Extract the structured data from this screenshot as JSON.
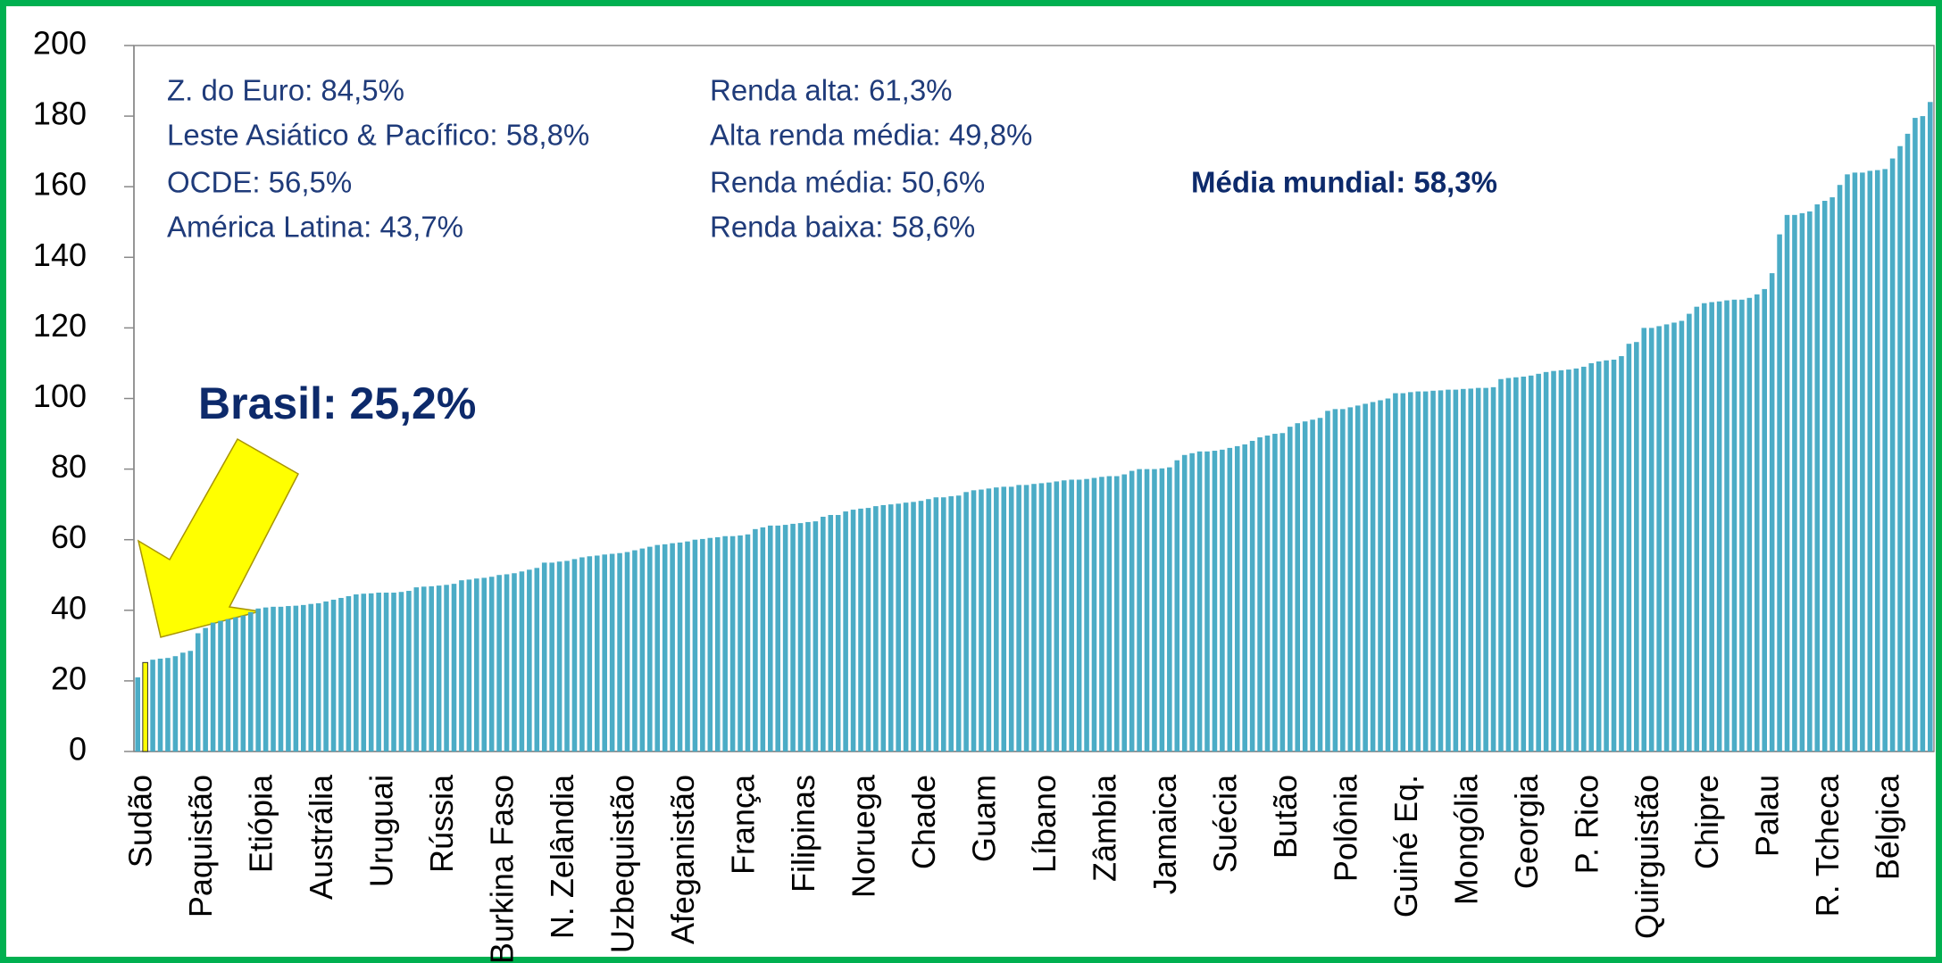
{
  "chart_data": {
    "type": "bar",
    "categories": [
      "Sudão",
      null,
      null,
      null,
      null,
      null,
      null,
      null,
      "Paquistão",
      null,
      null,
      null,
      null,
      null,
      null,
      null,
      "Etiópia",
      null,
      null,
      null,
      null,
      null,
      null,
      null,
      "Austrália",
      null,
      null,
      null,
      null,
      null,
      null,
      null,
      "Uruguai",
      null,
      null,
      null,
      null,
      null,
      null,
      null,
      "Rússia",
      null,
      null,
      null,
      null,
      null,
      null,
      null,
      "Burkina Faso",
      null,
      null,
      null,
      null,
      null,
      null,
      null,
      "N. Zelândia",
      null,
      null,
      null,
      null,
      null,
      null,
      null,
      "Uzbequistão",
      null,
      null,
      null,
      null,
      null,
      null,
      null,
      "Afeganistão",
      null,
      null,
      null,
      null,
      null,
      null,
      null,
      "França",
      null,
      null,
      null,
      null,
      null,
      null,
      null,
      "Filipinas",
      null,
      null,
      null,
      null,
      null,
      null,
      null,
      "Noruega",
      null,
      null,
      null,
      null,
      null,
      null,
      null,
      "Chade",
      null,
      null,
      null,
      null,
      null,
      null,
      null,
      "Guam",
      null,
      null,
      null,
      null,
      null,
      null,
      null,
      "Líbano",
      null,
      null,
      null,
      null,
      null,
      null,
      null,
      "Zâmbia",
      null,
      null,
      null,
      null,
      null,
      null,
      null,
      "Jamaica",
      null,
      null,
      null,
      null,
      null,
      null,
      null,
      "Suécia",
      null,
      null,
      null,
      null,
      null,
      null,
      null,
      "Butão",
      null,
      null,
      null,
      null,
      null,
      null,
      null,
      "Polônia",
      null,
      null,
      null,
      null,
      null,
      null,
      null,
      "Guiné Eq.",
      null,
      null,
      null,
      null,
      null,
      null,
      null,
      "Mongólia",
      null,
      null,
      null,
      null,
      null,
      null,
      null,
      "Georgia",
      null,
      null,
      null,
      null,
      null,
      null,
      null,
      "P. Rico",
      null,
      null,
      null,
      null,
      null,
      null,
      null,
      "Quirguistão",
      null,
      null,
      null,
      null,
      null,
      null,
      null,
      "Chipre",
      null,
      null,
      null,
      null,
      null,
      null,
      null,
      "Palau",
      null,
      null,
      null,
      null,
      null,
      null,
      null,
      "R. Tcheca",
      null,
      null,
      null,
      null,
      null,
      null,
      null,
      "Bélgica",
      null,
      null,
      null,
      null,
      null,
      null
    ],
    "values": [
      21,
      25.2,
      26,
      26.3,
      26.5,
      27,
      28,
      28.5,
      33.5,
      35,
      36.5,
      37,
      37.5,
      38,
      38.5,
      39.5,
      40.5,
      40.8,
      41,
      41,
      41.2,
      41.3,
      41.5,
      41.8,
      42,
      42.5,
      43,
      43.5,
      44,
      44.5,
      44.7,
      44.8,
      45,
      45,
      45,
      45.2,
      45.5,
      46.5,
      46.7,
      46.8,
      47,
      47.2,
      47.5,
      48.5,
      48.7,
      49,
      49.2,
      49.5,
      50,
      50.2,
      50.5,
      51,
      51.5,
      52,
      53.5,
      53.5,
      53.8,
      54,
      54.5,
      55,
      55.3,
      55.5,
      55.8,
      56,
      56.2,
      56.5,
      57,
      57.5,
      58,
      58.5,
      58.7,
      59,
      59.2,
      59.5,
      60,
      60.2,
      60.5,
      60.7,
      61,
      61,
      61.2,
      61.5,
      63,
      63.5,
      64,
      64,
      64.2,
      64.5,
      64.7,
      65,
      65.2,
      66.5,
      67,
      67,
      68,
      68.5,
      68.8,
      69,
      69.5,
      69.8,
      70,
      70.2,
      70.5,
      70.7,
      71,
      71.5,
      72,
      72,
      72.3,
      72.5,
      73.5,
      74,
      74.2,
      74.5,
      74.8,
      75,
      75,
      75.5,
      75.5,
      75.8,
      76,
      76.2,
      76.5,
      76.8,
      77,
      77,
      77.2,
      77.5,
      77.8,
      78,
      78,
      78.5,
      79.5,
      80,
      80,
      80,
      80.2,
      80.5,
      82.5,
      84,
      84.5,
      85,
      85,
      85.2,
      85.5,
      86,
      86.5,
      87,
      88,
      89,
      89.5,
      90,
      90.2,
      92,
      93,
      93.5,
      94,
      94.5,
      96.5,
      97,
      97,
      97.5,
      98,
      98.5,
      99,
      99.5,
      100,
      101.5,
      101.5,
      101.8,
      102,
      102,
      102.2,
      102.3,
      102.5,
      102.5,
      102.7,
      102.8,
      103,
      103,
      103.2,
      105.5,
      105.8,
      106,
      106.2,
      106.5,
      107,
      107.5,
      107.8,
      108,
      108.2,
      108.5,
      109,
      110,
      110.5,
      110.8,
      111,
      112,
      115.5,
      116,
      120,
      120,
      120.5,
      121,
      121.5,
      122,
      124,
      126,
      127,
      127.3,
      127.5,
      127.8,
      128,
      128,
      128.5,
      129.5,
      131,
      135.5,
      146.5,
      152,
      152,
      152.5,
      153,
      155,
      156,
      157,
      160.5,
      163.5,
      164,
      164,
      164.5,
      164.7,
      165,
      168,
      171.5,
      175,
      179.5,
      180,
      184
    ],
    "color": "#4bacc6",
    "highlight_index": 1,
    "highlight_color": "#ffff00",
    "ylim": [
      0,
      200
    ],
    "yticks": [
      0,
      20,
      40,
      60,
      80,
      100,
      120,
      140,
      160,
      180,
      200
    ],
    "annotations": {
      "left": [
        "Z. do Euro: 84,5%",
        "Leste Asiático & Pacífico: 58,8%",
        "OCDE:  56,5%",
        "América Latina: 43,7%"
      ],
      "middle": [
        "Renda alta: 61,3%",
        "Alta renda média: 49,8%",
        "Renda média:  50,6%",
        "Renda baixa: 58,6%"
      ],
      "world": "Média mundial: 58,3%",
      "callout": "Brasil: 25,2%"
    }
  }
}
